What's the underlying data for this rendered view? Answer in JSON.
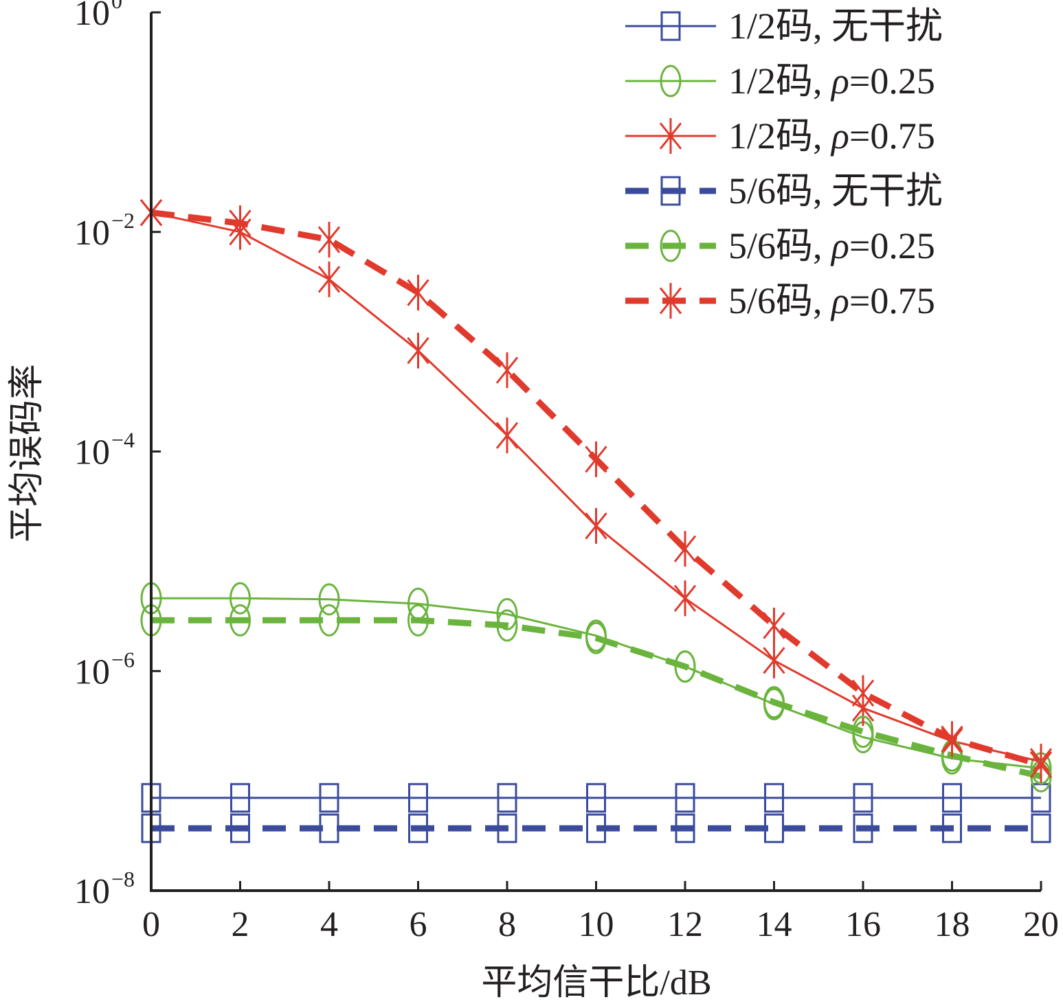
{
  "chart_data": {
    "type": "line",
    "x": [
      0,
      2,
      4,
      6,
      8,
      10,
      12,
      14,
      16,
      18,
      20
    ],
    "xlabel": "平均信干比/dB",
    "ylabel": "平均误码率",
    "xlim": [
      0,
      20
    ],
    "ylim": [
      1e-08,
      1
    ],
    "yscale": "log",
    "x_ticks": [
      "0",
      "2",
      "4",
      "6",
      "8",
      "10",
      "12",
      "14",
      "16",
      "18",
      "20"
    ],
    "y_ticks": [
      {
        "base": "10",
        "exp": "0",
        "value": 1
      },
      {
        "base": "10",
        "exp": "−2",
        "value": 0.01
      },
      {
        "base": "10",
        "exp": "−4",
        "value": 0.0001
      },
      {
        "base": "10",
        "exp": "−6",
        "value": 1e-06
      },
      {
        "base": "10",
        "exp": "−8",
        "value": 1e-08
      }
    ],
    "grid": false,
    "legend_position": "top-right",
    "series": [
      {
        "name": "1/2码, 无干扰",
        "color": "#3b4b9c",
        "dash": false,
        "marker": "square",
        "values": [
          7e-08,
          7e-08,
          7e-08,
          7e-08,
          7e-08,
          7e-08,
          7e-08,
          7e-08,
          7e-08,
          7e-08,
          7e-08
        ]
      },
      {
        "name": "1/2码, ρ=0.25",
        "color": "#6ab43e",
        "dash": false,
        "marker": "circle",
        "values": [
          4.6e-06,
          4.6e-06,
          4.5e-06,
          4.1e-06,
          3.3e-06,
          2.1e-06,
          1.1e-06,
          5e-07,
          2.5e-07,
          1.6e-07,
          1.3e-07
        ]
      },
      {
        "name": "1/2码, ρ=0.75",
        "color": "#e03a2d",
        "dash": false,
        "marker": "asterisk",
        "values": [
          0.015,
          0.01,
          0.0037,
          0.00083,
          0.00014,
          2.1e-05,
          4.6e-06,
          1.25e-06,
          4.6e-07,
          2.3e-07,
          1.5e-07
        ]
      },
      {
        "name": "5/6码, 无干扰",
        "color": "#3b4b9c",
        "dash": true,
        "marker": "square",
        "values": [
          3.7e-08,
          3.7e-08,
          3.7e-08,
          3.7e-08,
          3.7e-08,
          3.7e-08,
          3.7e-08,
          3.7e-08,
          3.7e-08,
          3.7e-08,
          3.7e-08
        ]
      },
      {
        "name": "5/6码, ρ=0.25",
        "color": "#6ab43e",
        "dash": true,
        "marker": "circle",
        "values": [
          2.9e-06,
          2.9e-06,
          2.9e-06,
          2.9e-06,
          2.6e-06,
          2e-06,
          1.1e-06,
          5.2e-07,
          2.8e-07,
          1.7e-07,
          1.1e-07
        ]
      },
      {
        "name": "5/6码, ρ=0.75",
        "color": "#e03a2d",
        "dash": true,
        "marker": "asterisk",
        "values": [
          0.015,
          0.012,
          0.0085,
          0.0028,
          0.00055,
          8.5e-05,
          1.3e-05,
          2.6e-06,
          6.3e-07,
          2.4e-07,
          1.4e-07
        ]
      }
    ]
  }
}
